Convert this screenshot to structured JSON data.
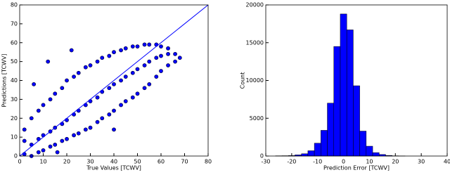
{
  "chart_data": [
    {
      "type": "scatter",
      "xlabel": "True Values [TCWV]",
      "ylabel": "Predictions [TCWV]",
      "xlim": [
        0,
        80
      ],
      "ylim": [
        0,
        80
      ],
      "xticks": [
        0,
        10,
        20,
        30,
        40,
        50,
        60,
        70,
        80
      ],
      "yticks": [
        0,
        10,
        20,
        30,
        40,
        50,
        60,
        70,
        80
      ],
      "series": [
        {
          "style": "points",
          "color": "#0000ff",
          "x": [
            2,
            2,
            2,
            5,
            5,
            5,
            8,
            8,
            8,
            10,
            10,
            10,
            13,
            13,
            13,
            15,
            15,
            15,
            18,
            18,
            18,
            20,
            20,
            20,
            23,
            23,
            23,
            25,
            25,
            25,
            28,
            28,
            28,
            30,
            30,
            30,
            33,
            33,
            33,
            35,
            35,
            35,
            38,
            38,
            38,
            40,
            40,
            40,
            43,
            43,
            43,
            45,
            45,
            45,
            48,
            48,
            48,
            50,
            50,
            50,
            53,
            53,
            53,
            55,
            55,
            55,
            58,
            58,
            58,
            60,
            60,
            60,
            63,
            63,
            63,
            66,
            66,
            68,
            6,
            12,
            22,
            16,
            40
          ],
          "values": [
            1,
            8,
            14,
            0,
            6,
            20,
            2,
            9,
            24,
            3,
            11,
            27,
            5,
            13,
            30,
            6,
            15,
            33,
            8,
            17,
            36,
            9,
            19,
            40,
            11,
            22,
            42,
            12,
            24,
            44,
            14,
            27,
            47,
            15,
            29,
            48,
            18,
            31,
            50,
            20,
            34,
            52,
            22,
            36,
            53,
            24,
            38,
            55,
            27,
            40,
            56,
            29,
            42,
            57,
            31,
            44,
            58,
            33,
            46,
            58,
            36,
            48,
            59,
            38,
            50,
            59,
            42,
            52,
            59,
            45,
            53,
            58,
            48,
            54,
            57,
            50,
            54,
            52,
            38,
            50,
            56,
            2,
            14
          ]
        },
        {
          "style": "line",
          "color": "#0000ff",
          "x": [
            0,
            80
          ],
          "values": [
            0,
            80
          ]
        }
      ]
    },
    {
      "type": "histogram",
      "xlabel": "Prediction Error [TCWV]",
      "ylabel": "Count",
      "xlim": [
        -30,
        40
      ],
      "ylim": [
        0,
        20000
      ],
      "xticks": [
        -30,
        -20,
        -10,
        0,
        10,
        20,
        30,
        40
      ],
      "yticks": [
        0,
        5000,
        10000,
        15000,
        20000
      ],
      "color": "#0000ff",
      "bins": [
        -26.25,
        -23.75,
        -21.25,
        -18.75,
        -16.25,
        -13.75,
        -11.25,
        -8.75,
        -6.25,
        -3.75,
        -1.25,
        1.25,
        3.75,
        6.25,
        8.75,
        11.25,
        13.75,
        16.25,
        18.75,
        21.25,
        23.75
      ],
      "values": [
        30,
        40,
        60,
        150,
        300,
        700,
        1700,
        3400,
        7000,
        14500,
        18800,
        16700,
        9300,
        3300,
        1300,
        450,
        200,
        80,
        30,
        10
      ]
    }
  ]
}
